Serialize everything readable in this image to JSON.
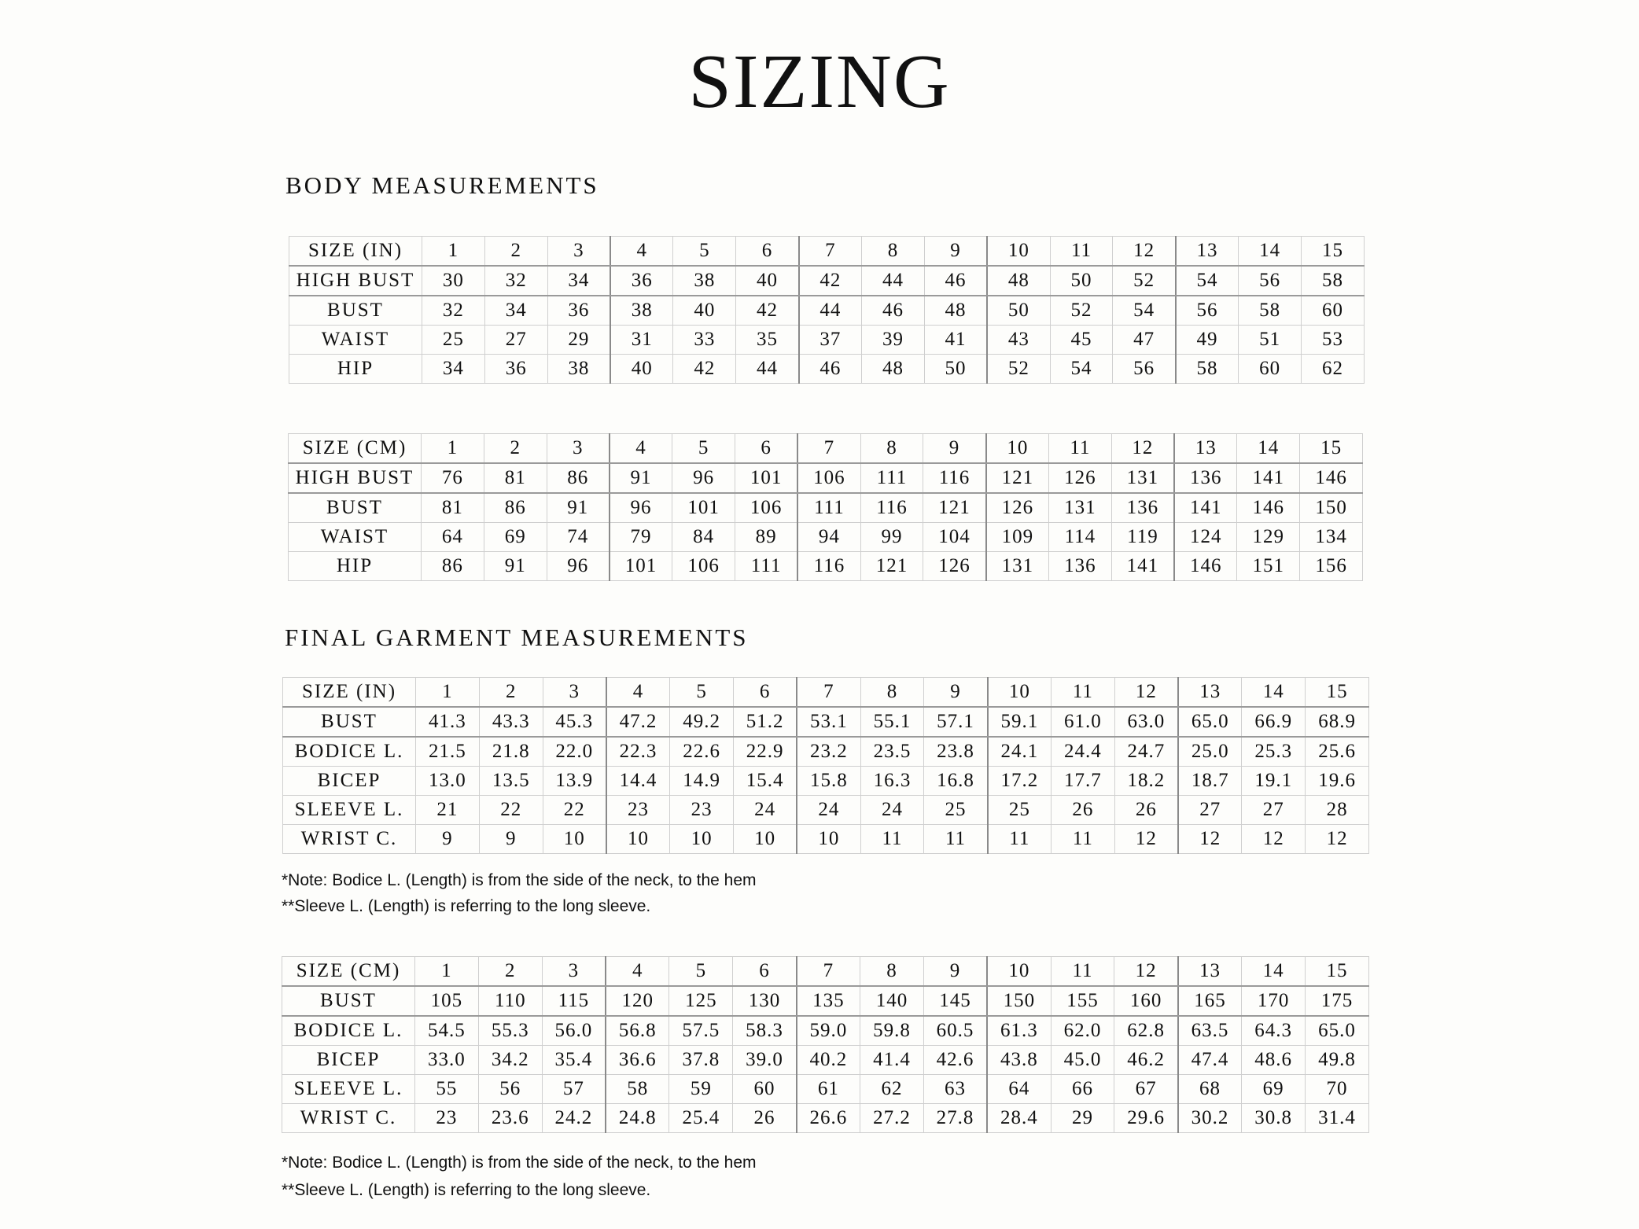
{
  "title": "SIZING",
  "sections": [
    {
      "heading": "BODY MEASUREMENTS"
    },
    {
      "heading": "FINAL GARMENT MEASUREMENTS"
    }
  ],
  "tables": [
    {
      "rows": [
        [
          "SIZE (IN)",
          "1",
          "2",
          "3",
          "4",
          "5",
          "6",
          "7",
          "8",
          "9",
          "10",
          "11",
          "12",
          "13",
          "14",
          "15"
        ],
        [
          "HIGH BUST",
          "30",
          "32",
          "34",
          "36",
          "38",
          "40",
          "42",
          "44",
          "46",
          "48",
          "50",
          "52",
          "54",
          "56",
          "58"
        ],
        [
          "BUST",
          "32",
          "34",
          "36",
          "38",
          "40",
          "42",
          "44",
          "46",
          "48",
          "50",
          "52",
          "54",
          "56",
          "58",
          "60"
        ],
        [
          "WAIST",
          "25",
          "27",
          "29",
          "31",
          "33",
          "35",
          "37",
          "39",
          "41",
          "43",
          "45",
          "47",
          "49",
          "51",
          "53"
        ],
        [
          "HIP",
          "34",
          "36",
          "38",
          "40",
          "42",
          "44",
          "46",
          "48",
          "50",
          "52",
          "54",
          "56",
          "58",
          "60",
          "62"
        ]
      ]
    },
    {
      "rows": [
        [
          "SIZE (CM)",
          "1",
          "2",
          "3",
          "4",
          "5",
          "6",
          "7",
          "8",
          "9",
          "10",
          "11",
          "12",
          "13",
          "14",
          "15"
        ],
        [
          "HIGH BUST",
          "76",
          "81",
          "86",
          "91",
          "96",
          "101",
          "106",
          "111",
          "116",
          "121",
          "126",
          "131",
          "136",
          "141",
          "146"
        ],
        [
          "BUST",
          "81",
          "86",
          "91",
          "96",
          "101",
          "106",
          "111",
          "116",
          "121",
          "126",
          "131",
          "136",
          "141",
          "146",
          "150"
        ],
        [
          "WAIST",
          "64",
          "69",
          "74",
          "79",
          "84",
          "89",
          "94",
          "99",
          "104",
          "109",
          "114",
          "119",
          "124",
          "129",
          "134"
        ],
        [
          "HIP",
          "86",
          "91",
          "96",
          "101",
          "106",
          "111",
          "116",
          "121",
          "126",
          "131",
          "136",
          "141",
          "146",
          "151",
          "156"
        ]
      ]
    },
    {
      "rows": [
        [
          "SIZE (IN)",
          "1",
          "2",
          "3",
          "4",
          "5",
          "6",
          "7",
          "8",
          "9",
          "10",
          "11",
          "12",
          "13",
          "14",
          "15"
        ],
        [
          "BUST",
          "41.3",
          "43.3",
          "45.3",
          "47.2",
          "49.2",
          "51.2",
          "53.1",
          "55.1",
          "57.1",
          "59.1",
          "61.0",
          "63.0",
          "65.0",
          "66.9",
          "68.9"
        ],
        [
          "BODICE L.",
          "21.5",
          "21.8",
          "22.0",
          "22.3",
          "22.6",
          "22.9",
          "23.2",
          "23.5",
          "23.8",
          "24.1",
          "24.4",
          "24.7",
          "25.0",
          "25.3",
          "25.6"
        ],
        [
          "BICEP",
          "13.0",
          "13.5",
          "13.9",
          "14.4",
          "14.9",
          "15.4",
          "15.8",
          "16.3",
          "16.8",
          "17.2",
          "17.7",
          "18.2",
          "18.7",
          "19.1",
          "19.6"
        ],
        [
          "SLEEVE L.",
          "21",
          "22",
          "22",
          "23",
          "23",
          "24",
          "24",
          "24",
          "25",
          "25",
          "26",
          "26",
          "27",
          "27",
          "28"
        ],
        [
          "WRIST C.",
          "9",
          "9",
          "10",
          "10",
          "10",
          "10",
          "10",
          "11",
          "11",
          "11",
          "11",
          "12",
          "12",
          "12",
          "12"
        ]
      ]
    },
    {
      "rows": [
        [
          "SIZE (CM)",
          "1",
          "2",
          "3",
          "4",
          "5",
          "6",
          "7",
          "8",
          "9",
          "10",
          "11",
          "12",
          "13",
          "14",
          "15"
        ],
        [
          "BUST",
          "105",
          "110",
          "115",
          "120",
          "125",
          "130",
          "135",
          "140",
          "145",
          "150",
          "155",
          "160",
          "165",
          "170",
          "175"
        ],
        [
          "BODICE L.",
          "54.5",
          "55.3",
          "56.0",
          "56.8",
          "57.5",
          "58.3",
          "59.0",
          "59.8",
          "60.5",
          "61.3",
          "62.0",
          "62.8",
          "63.5",
          "64.3",
          "65.0"
        ],
        [
          "BICEP",
          "33.0",
          "34.2",
          "35.4",
          "36.6",
          "37.8",
          "39.0",
          "40.2",
          "41.4",
          "42.6",
          "43.8",
          "45.0",
          "46.2",
          "47.4",
          "48.6",
          "49.8"
        ],
        [
          "SLEEVE L.",
          "55",
          "56",
          "57",
          "58",
          "59",
          "60",
          "61",
          "62",
          "63",
          "64",
          "66",
          "67",
          "68",
          "69",
          "70"
        ],
        [
          "WRIST C.",
          "23",
          "23.6",
          "24.2",
          "24.8",
          "25.4",
          "26",
          "26.6",
          "27.2",
          "27.8",
          "28.4",
          "29",
          "29.6",
          "30.2",
          "30.8",
          "31.4"
        ]
      ]
    }
  ],
  "notes": [
    {
      "note1": "*Note: Bodice L. (Length) is from the side of the neck, to the hem",
      "note2": "**Sleeve L. (Length) is referring to the long sleeve."
    },
    {
      "note1": "*Note: Bodice L. (Length) is from the side of the neck, to the hem",
      "note2": "**Sleeve L. (Length) is referring to the long sleeve."
    }
  ]
}
